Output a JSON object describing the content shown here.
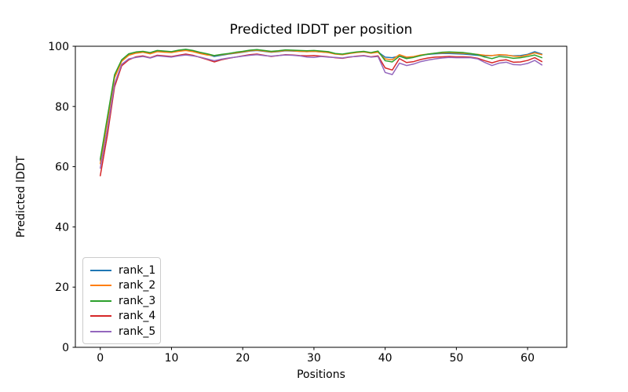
{
  "chart_data": {
    "type": "line",
    "title": "Predicted lDDT per position",
    "xlabel": "Positions",
    "ylabel": "Predicted lDDT",
    "xlim": [
      -3.5,
      65.5
    ],
    "ylim": [
      0,
      100
    ],
    "xticks": [
      0,
      10,
      20,
      30,
      40,
      50,
      60
    ],
    "yticks": [
      0,
      20,
      40,
      60,
      80,
      100
    ],
    "grid": false,
    "legend_position": "lower-left",
    "axes_color": "#000000",
    "background_color": "#ffffff",
    "x": [
      0,
      1,
      2,
      3,
      4,
      5,
      6,
      7,
      8,
      9,
      10,
      11,
      12,
      13,
      14,
      15,
      16,
      17,
      18,
      19,
      20,
      21,
      22,
      23,
      24,
      25,
      26,
      27,
      28,
      29,
      30,
      31,
      32,
      33,
      34,
      35,
      36,
      37,
      38,
      39,
      40,
      41,
      42,
      43,
      44,
      45,
      46,
      47,
      48,
      49,
      50,
      51,
      52,
      53,
      54,
      55,
      56,
      57,
      58,
      59,
      60,
      61,
      62
    ],
    "series": [
      {
        "name": "rank_1",
        "color": "#1f77b4",
        "values": [
          62,
          76,
          90,
          95.3,
          97.2,
          97.8,
          98.0,
          97.6,
          98.3,
          98.1,
          98.0,
          98.4,
          98.7,
          98.4,
          97.8,
          97.3,
          96.6,
          97.0,
          97.4,
          97.7,
          98.0,
          98.4,
          98.6,
          98.3,
          98.0,
          98.2,
          98.5,
          98.4,
          98.3,
          98.2,
          98.3,
          98.1,
          97.9,
          97.5,
          97.3,
          97.7,
          98.0,
          98.1,
          97.8,
          98.1,
          96.4,
          96.2,
          96.8,
          96.2,
          96.5,
          97.0,
          97.3,
          97.5,
          97.6,
          97.6,
          97.5,
          97.4,
          97.2,
          97.0,
          96.8,
          96.9,
          97.1,
          97.0,
          96.8,
          96.9,
          97.3,
          98.2,
          97.4
        ]
      },
      {
        "name": "rank_2",
        "color": "#ff7f0e",
        "values": [
          61,
          75,
          89.5,
          95.0,
          97.0,
          97.7,
          98.0,
          97.5,
          98.2,
          98.0,
          97.9,
          98.3,
          98.6,
          98.2,
          97.6,
          97.1,
          96.9,
          97.2,
          97.5,
          97.8,
          98.1,
          98.5,
          98.7,
          98.4,
          98.1,
          98.3,
          98.6,
          98.5,
          98.3,
          98.2,
          98.3,
          98.1,
          97.9,
          97.4,
          97.2,
          97.6,
          97.9,
          98.1,
          97.7,
          98.0,
          95.8,
          95.5,
          97.2,
          96.4,
          96.6,
          97.1,
          97.4,
          97.7,
          97.8,
          97.9,
          97.8,
          97.7,
          97.5,
          97.3,
          97.0,
          96.9,
          97.2,
          97.1,
          96.7,
          96.6,
          97.1,
          97.8,
          97.2
        ]
      },
      {
        "name": "rank_3",
        "color": "#2ca02c",
        "values": [
          62.5,
          76.5,
          90.5,
          95.5,
          97.5,
          98.1,
          98.3,
          97.9,
          98.6,
          98.4,
          98.2,
          98.7,
          99.0,
          98.6,
          98.0,
          97.5,
          96.9,
          97.3,
          97.6,
          98.0,
          98.3,
          98.7,
          98.9,
          98.6,
          98.3,
          98.5,
          98.8,
          98.7,
          98.6,
          98.5,
          98.6,
          98.4,
          98.2,
          97.6,
          97.4,
          97.8,
          98.1,
          98.3,
          97.9,
          98.4,
          95.2,
          94.8,
          96.7,
          95.9,
          96.3,
          96.9,
          97.4,
          97.7,
          98.0,
          98.1,
          98.0,
          97.9,
          97.6,
          97.2,
          96.4,
          95.9,
          96.6,
          96.4,
          96.0,
          96.2,
          96.6,
          97.1,
          96.2
        ]
      },
      {
        "name": "rank_4",
        "color": "#d62728",
        "values": [
          57,
          70.5,
          86.5,
          93.5,
          95.5,
          96.5,
          96.8,
          96.2,
          97.0,
          96.8,
          96.6,
          97.0,
          97.4,
          97.0,
          96.3,
          95.6,
          94.8,
          95.5,
          96.0,
          96.4,
          96.8,
          97.2,
          97.4,
          97.0,
          96.6,
          96.9,
          97.2,
          97.1,
          96.9,
          96.8,
          96.9,
          96.7,
          96.5,
          96.2,
          96.0,
          96.4,
          96.7,
          96.9,
          96.5,
          96.8,
          92.8,
          92.1,
          95.9,
          94.6,
          94.9,
          95.6,
          96.1,
          96.4,
          96.5,
          96.6,
          96.5,
          96.5,
          96.4,
          96.0,
          95.2,
          94.5,
          95.2,
          95.5,
          94.7,
          94.8,
          95.3,
          96.2,
          94.9
        ]
      },
      {
        "name": "rank_5",
        "color": "#9467bd",
        "values": [
          59.5,
          72.5,
          87.5,
          94.0,
          95.8,
          96.3,
          96.6,
          96.1,
          96.8,
          96.6,
          96.4,
          96.8,
          97.1,
          96.8,
          96.4,
          95.8,
          95.2,
          95.7,
          96.1,
          96.4,
          96.7,
          97.0,
          97.2,
          96.9,
          96.7,
          96.9,
          97.1,
          97.0,
          96.8,
          96.4,
          96.3,
          96.6,
          96.4,
          96.3,
          96.1,
          96.5,
          96.6,
          96.8,
          96.4,
          96.6,
          91.3,
          90.6,
          94.4,
          93.6,
          94.1,
          94.9,
          95.4,
          95.8,
          96.1,
          96.3,
          96.2,
          96.2,
          96.2,
          95.8,
          94.6,
          93.6,
          94.4,
          94.7,
          93.9,
          93.8,
          94.3,
          95.3,
          93.8
        ]
      }
    ]
  }
}
